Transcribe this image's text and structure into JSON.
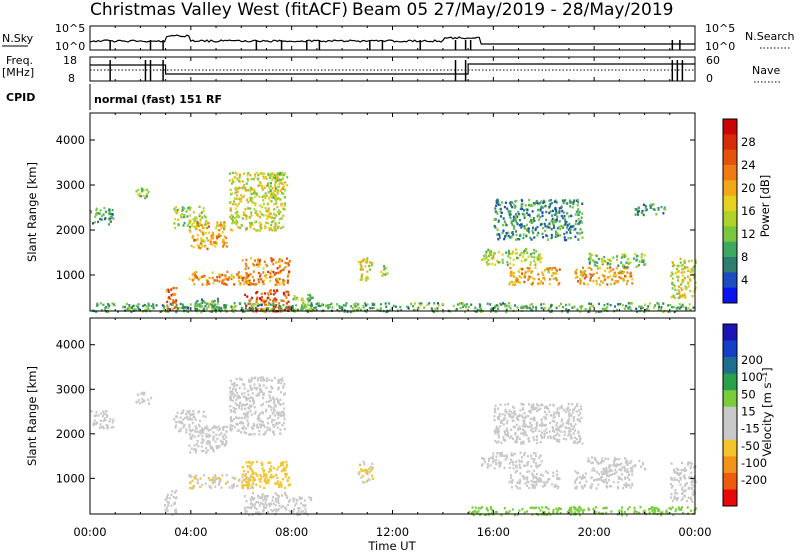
{
  "header": {
    "title": "Christmas Valley West (fitACF)",
    "beam_date": "Beam 05  27/May/2019 - 28/May/2019"
  },
  "panels": {
    "nsky": {
      "label": "N.Sky",
      "tick_top": "10^5",
      "tick_bottom": "10^0",
      "right_top": "10^5",
      "right_bottom": "10^0",
      "legend": "N.Search"
    },
    "freq": {
      "label_line1": "Freq.",
      "label_line2": "[MHz]",
      "tick_top": "18",
      "tick_bottom": "8",
      "right_top": "60",
      "right_bottom": "0",
      "legend": "Nave"
    },
    "cpid": {
      "label": "CPID",
      "text": "normal (fast) 151 RF"
    }
  },
  "colors": {
    "power": [
      "#0a14ee",
      "#1c4cc0",
      "#2e7d6e",
      "#3fa860",
      "#7ac63e",
      "#b0d22a",
      "#e6d21e",
      "#f2a818",
      "#ee7c12",
      "#e4520c",
      "#d82a08",
      "#c80606"
    ],
    "velocity": [
      "#e80a0a",
      "#ee5a10",
      "#f2941a",
      "#f4c42a",
      "#c8c8c8",
      "#c8c8c8",
      "#7acc3c",
      "#2aa04a",
      "#1e6e8c",
      "#1440c8",
      "#1a14b4"
    ]
  },
  "chart_data": [
    {
      "type": "heatmap",
      "name": "power",
      "ylabel": "Slant Range [km]",
      "yticks": [
        "1000",
        "2000",
        "3000",
        "4000"
      ],
      "ylim": [
        200,
        4600
      ],
      "colorbar_label": "Power [dB]",
      "colorbar_ticks": [
        "4",
        "8",
        "12",
        "16",
        "20",
        "24",
        "28"
      ],
      "colorbar_range": [
        0,
        32
      ],
      "blobs": [
        {
          "t": [
            0.0,
            0.9
          ],
          "r": [
            2150,
            2550
          ],
          "v": 9
        },
        {
          "t": [
            1.8,
            2.4
          ],
          "r": [
            2700,
            2950
          ],
          "v": 12
        },
        {
          "t": [
            2.9,
            3.4
          ],
          "r": [
            200,
            750
          ],
          "v": 24
        },
        {
          "t": [
            3.3,
            4.6
          ],
          "r": [
            2050,
            2550
          ],
          "v": 14
        },
        {
          "t": [
            3.9,
            5.4
          ],
          "r": [
            1600,
            2200
          ],
          "v": 20
        },
        {
          "t": [
            4.1,
            5.2
          ],
          "r": [
            200,
            500
          ],
          "v": 10
        },
        {
          "t": [
            3.9,
            6.4
          ],
          "r": [
            800,
            1100
          ],
          "v": 22
        },
        {
          "t": [
            5.5,
            7.7
          ],
          "r": [
            2000,
            3300
          ],
          "v": 16
        },
        {
          "t": [
            6.0,
            7.9
          ],
          "r": [
            800,
            1400
          ],
          "v": 22
        },
        {
          "t": [
            6.1,
            7.9
          ],
          "r": [
            200,
            700
          ],
          "v": 26
        },
        {
          "t": [
            7.0,
            7.8
          ],
          "r": [
            2700,
            3300
          ],
          "v": 14
        },
        {
          "t": [
            8.0,
            8.8
          ],
          "r": [
            200,
            600
          ],
          "v": 12
        },
        {
          "t": [
            10.6,
            11.2
          ],
          "r": [
            900,
            1400
          ],
          "v": 16
        },
        {
          "t": [
            11.5,
            11.8
          ],
          "r": [
            1000,
            1300
          ],
          "v": 12
        },
        {
          "t": [
            15.5,
            17.9
          ],
          "r": [
            1250,
            1600
          ],
          "v": 14
        },
        {
          "t": [
            16.0,
            19.5
          ],
          "r": [
            1800,
            2700
          ],
          "v": 8
        },
        {
          "t": [
            16.6,
            18.6
          ],
          "r": [
            800,
            1200
          ],
          "v": 20
        },
        {
          "t": [
            19.2,
            21.5
          ],
          "r": [
            800,
            1200
          ],
          "v": 20
        },
        {
          "t": [
            19.7,
            22.0
          ],
          "r": [
            1200,
            1500
          ],
          "v": 12
        },
        {
          "t": [
            21.6,
            22.8
          ],
          "r": [
            2350,
            2600
          ],
          "v": 8
        },
        {
          "t": [
            23.0,
            24.0
          ],
          "r": [
            500,
            1400
          ],
          "v": 16
        },
        {
          "t": [
            0.0,
            24.0
          ],
          "r": [
            200,
            400
          ],
          "v": 10
        }
      ]
    },
    {
      "type": "heatmap",
      "name": "velocity",
      "ylabel": "Slant Range [km]",
      "yticks": [
        "1000",
        "2000",
        "3000",
        "4000"
      ],
      "ylim": [
        200,
        4600
      ],
      "colorbar_label": "Velocity [m s⁻¹]",
      "colorbar_ticks": [
        "-200",
        "-100",
        "-50",
        "-15",
        "15",
        "50",
        "100",
        "200"
      ],
      "colorbar_range": [
        -250,
        250
      ],
      "blobs": [
        {
          "t": [
            0.0,
            0.9
          ],
          "r": [
            2150,
            2550
          ],
          "v": 0
        },
        {
          "t": [
            1.8,
            2.4
          ],
          "r": [
            2700,
            2950
          ],
          "v": 0
        },
        {
          "t": [
            2.9,
            3.4
          ],
          "r": [
            200,
            750
          ],
          "v": 0
        },
        {
          "t": [
            3.3,
            4.6
          ],
          "r": [
            2050,
            2550
          ],
          "v": -30
        },
        {
          "t": [
            3.9,
            5.4
          ],
          "r": [
            1600,
            2200
          ],
          "v": 0
        },
        {
          "t": [
            3.9,
            6.4
          ],
          "r": [
            800,
            1100
          ],
          "v": -60
        },
        {
          "t": [
            5.5,
            7.7
          ],
          "r": [
            2000,
            3300
          ],
          "v": 0
        },
        {
          "t": [
            6.0,
            7.9
          ],
          "r": [
            800,
            1400
          ],
          "v": -90
        },
        {
          "t": [
            6.1,
            7.9
          ],
          "r": [
            200,
            700
          ],
          "v": 0
        },
        {
          "t": [
            8.0,
            8.8
          ],
          "r": [
            200,
            600
          ],
          "v": 0
        },
        {
          "t": [
            10.6,
            11.2
          ],
          "r": [
            900,
            1400
          ],
          "v": -70
        },
        {
          "t": [
            15.5,
            17.9
          ],
          "r": [
            1250,
            1600
          ],
          "v": 0
        },
        {
          "t": [
            16.0,
            19.5
          ],
          "r": [
            1800,
            2700
          ],
          "v": 0
        },
        {
          "t": [
            16.6,
            18.6
          ],
          "r": [
            800,
            1200
          ],
          "v": 0
        },
        {
          "t": [
            19.2,
            21.5
          ],
          "r": [
            800,
            1200
          ],
          "v": 0
        },
        {
          "t": [
            19.7,
            22.0
          ],
          "r": [
            1200,
            1500
          ],
          "v": 0
        },
        {
          "t": [
            23.0,
            24.0
          ],
          "r": [
            500,
            1400
          ],
          "v": 0
        },
        {
          "t": [
            15.0,
            24.0
          ],
          "r": [
            200,
            380
          ],
          "v": 40
        }
      ]
    }
  ],
  "xaxis": {
    "label": "Time UT",
    "ticks": [
      "00:00",
      "04:00",
      "08:00",
      "12:00",
      "16:00",
      "20:00",
      "00:00"
    ],
    "range_hours": [
      0,
      24
    ]
  }
}
